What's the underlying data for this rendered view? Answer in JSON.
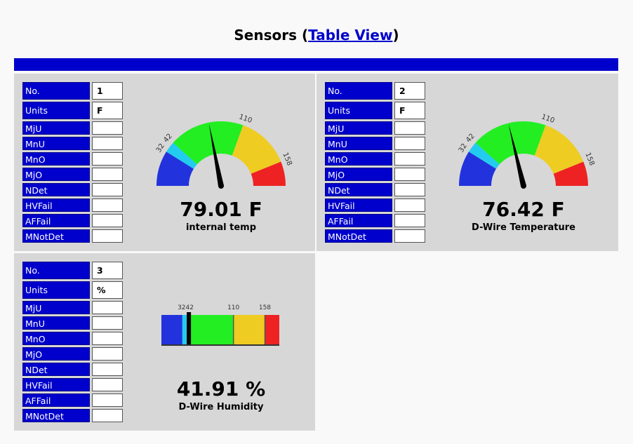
{
  "header": {
    "title_prefix": "Sensors (",
    "link_label": "Table View",
    "title_suffix": ")"
  },
  "field_labels": [
    "No.",
    "Units",
    "MjU",
    "MnU",
    "MnO",
    "MjO",
    "NDet",
    "HVFail",
    "AFFail",
    "MNotDet"
  ],
  "sensors": [
    {
      "number": "1",
      "units": "F",
      "values": [
        "",
        "",
        "",
        "",
        "",
        "",
        "",
        ""
      ],
      "reading": "79.01 F",
      "label": "internal temp",
      "gauge_type": "dial",
      "value": 79.01,
      "ticks": [
        "32",
        "42",
        "110",
        "158"
      ]
    },
    {
      "number": "2",
      "units": "F",
      "values": [
        "",
        "",
        "",
        "",
        "",
        "",
        "",
        ""
      ],
      "reading": "76.42 F",
      "label": "D-Wire Temperature",
      "gauge_type": "dial",
      "value": 76.42,
      "ticks": [
        "32",
        "42",
        "110",
        "158"
      ]
    },
    {
      "number": "3",
      "units": "%",
      "values": [
        "",
        "",
        "",
        "",
        "",
        "",
        "",
        ""
      ],
      "reading": "41.91 %",
      "label": "D-Wire Humidity",
      "gauge_type": "bar",
      "value": 41.91,
      "ticks": [
        "3242",
        "110",
        "158"
      ]
    }
  ],
  "gauge_scale": {
    "min": 0,
    "max": 180,
    "zones": [
      32,
      42,
      110,
      158
    ]
  },
  "colors": {
    "blue": "#0000cc",
    "zone_low": "#2233dd",
    "zone_cyan": "#22ccee",
    "zone_green": "#22ee22",
    "zone_yellow": "#eecc22",
    "zone_red": "#ee2222"
  }
}
